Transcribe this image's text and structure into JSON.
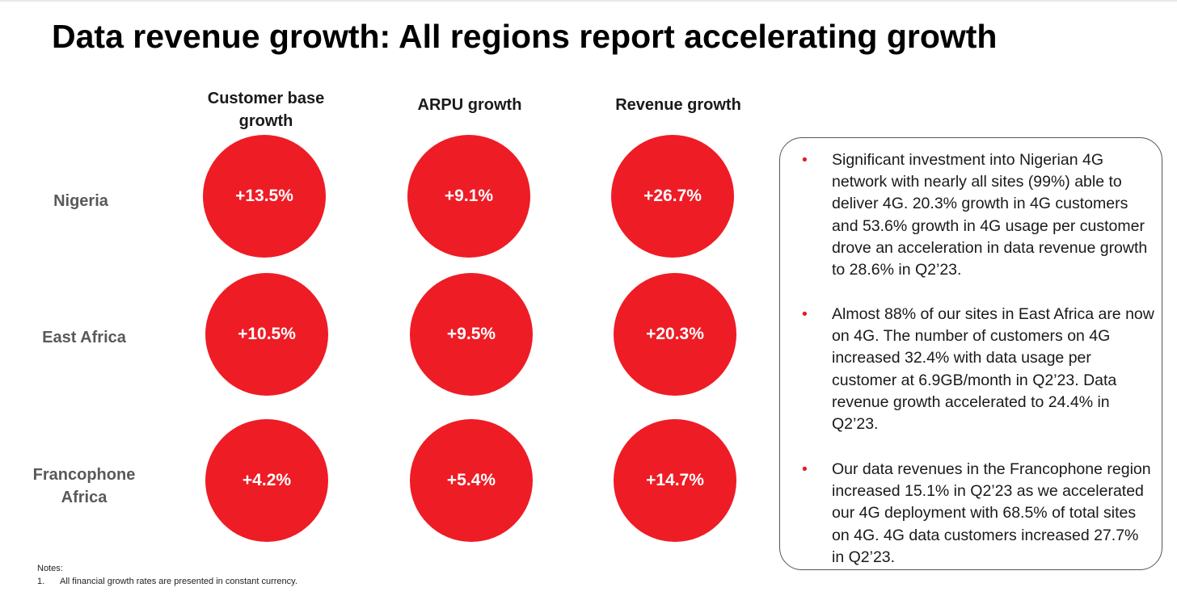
{
  "title": "Data revenue growth: All regions report accelerating growth",
  "columns": [
    "Customer base growth",
    "ARPU growth",
    "Revenue growth"
  ],
  "rows": [
    {
      "label": "Nigeria",
      "values": [
        "+13.5%",
        "+9.1%",
        "+26.7%"
      ]
    },
    {
      "label": "East Africa",
      "values": [
        "+10.5%",
        "+9.5%",
        "+20.3%"
      ]
    },
    {
      "label": "Francophone Africa",
      "values": [
        "+4.2%",
        "+5.4%",
        "+14.7%"
      ]
    }
  ],
  "circle_color": "#ee1c25",
  "bullets": [
    {
      "marker": "•",
      "text": "Significant investment into Nigerian 4G network with nearly all sites (99%) able to deliver 4G. 20.3% growth in 4G customers and 53.6% growth in 4G usage per customer drove an acceleration in data revenue growth to 28.6% in Q2’23."
    },
    {
      "marker": "•",
      "text": "Almost 88% of our sites in East Africa are now on 4G. The number of customers on 4G increased 32.4% with data usage per customer at 6.9GB/month in Q2’23. Data revenue growth accelerated to 24.4% in Q2’23."
    },
    {
      "marker": "•",
      "text": "Our data revenues in the Francophone region increased 15.1% in Q2’23 as we accelerated our 4G deployment with 68.5% of total sites on 4G. 4G data customers increased 27.7% in Q2’23."
    }
  ],
  "notes": {
    "heading": "Notes:",
    "items": [
      {
        "number": "1.",
        "text": "All financial growth rates are presented in constant currency."
      }
    ]
  }
}
